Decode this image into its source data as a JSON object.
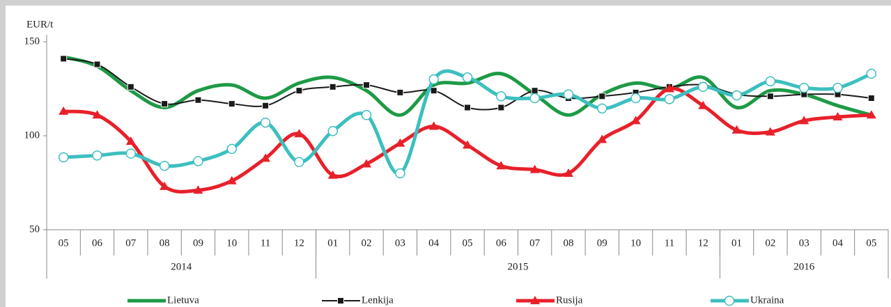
{
  "chart_data": {
    "type": "line",
    "y_label": "EUR/t",
    "categories": [
      "05",
      "06",
      "07",
      "08",
      "09",
      "10",
      "11",
      "12",
      "01",
      "02",
      "03",
      "04",
      "05",
      "06",
      "07",
      "08",
      "09",
      "10",
      "11",
      "12",
      "01",
      "02",
      "03",
      "04",
      "05"
    ],
    "groups": [
      {
        "name": "2014",
        "count": 8
      },
      {
        "name": "2015",
        "count": 12
      },
      {
        "name": "2016",
        "count": 5
      }
    ],
    "ylim": [
      50,
      150
    ],
    "yticks": [
      50,
      100,
      150
    ],
    "grid": false,
    "legend": "bottom",
    "series": [
      {
        "name": "Lietuva",
        "color": "#1e9a46",
        "marker": "none",
        "width": 5,
        "values": [
          142,
          137,
          124,
          115,
          124,
          127,
          120,
          128,
          131,
          124,
          111,
          127,
          128,
          133,
          122,
          111,
          122,
          128,
          125,
          131,
          115,
          124,
          122,
          116,
          111
        ]
      },
      {
        "name": "Lenkija",
        "color": "#1a1a1a",
        "marker": "square",
        "width": 2,
        "values": [
          141,
          138,
          126,
          117,
          119,
          117,
          116,
          124,
          126,
          127,
          123,
          124,
          115,
          115,
          124,
          120,
          121,
          123,
          126,
          127,
          122,
          121,
          122,
          122,
          120
        ]
      },
      {
        "name": "Rusija",
        "color": "#e8202a",
        "marker": "triangle",
        "width": 5,
        "values": [
          113,
          111,
          97,
          73,
          71,
          76,
          88,
          101,
          79,
          85,
          96,
          105,
          95,
          84,
          82,
          80,
          98,
          108,
          125,
          116,
          103,
          102,
          108,
          110,
          111
        ]
      },
      {
        "name": "Ukraina",
        "color": "#3dbfbf",
        "marker": "circle",
        "width": 5,
        "values": [
          88.5,
          89.5,
          90.5,
          84,
          86.5,
          93,
          107,
          86,
          102.5,
          111,
          80,
          130,
          131,
          121,
          120,
          122,
          114.5,
          120,
          119.5,
          126,
          121.5,
          129,
          125.5,
          125.5,
          133
        ]
      }
    ]
  }
}
